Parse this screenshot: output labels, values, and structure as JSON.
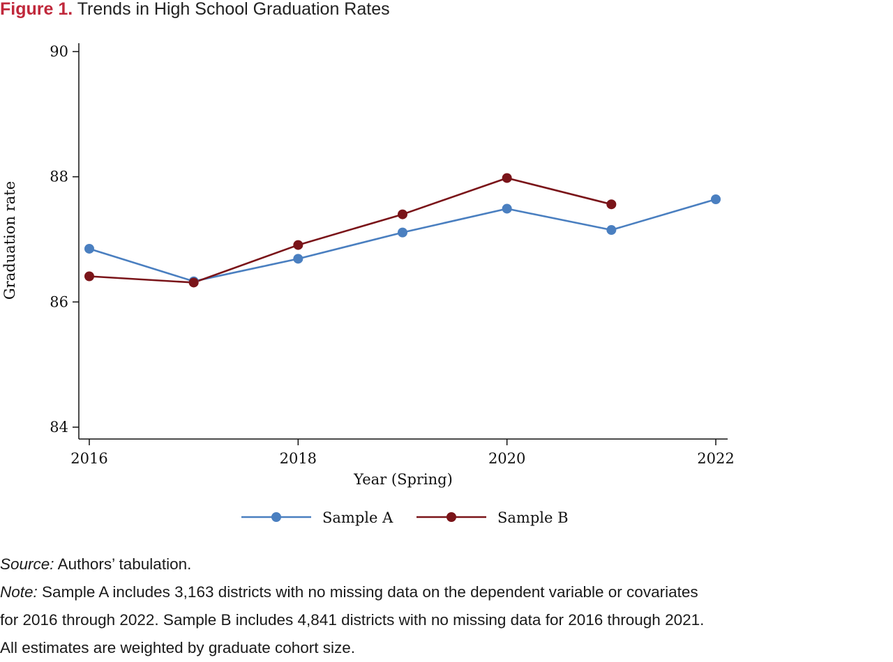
{
  "figure": {
    "label": "Figure 1.",
    "title": "Trends in High School Graduation Rates"
  },
  "chart_data": {
    "type": "line",
    "title": "Trends in High School Graduation Rates",
    "xlabel": "Year (Spring)",
    "ylabel": "Graduation rate",
    "xlim": [
      2016,
      2022
    ],
    "ylim": [
      84,
      90
    ],
    "x_ticks": [
      2016,
      2018,
      2020,
      2022
    ],
    "y_ticks": [
      84,
      86,
      88,
      90
    ],
    "grid": false,
    "legend_position": "bottom",
    "series": [
      {
        "name": "Sample A",
        "color": "#4a7fc0",
        "x": [
          2016,
          2017,
          2018,
          2019,
          2020,
          2021,
          2022
        ],
        "values": [
          86.85,
          86.33,
          86.69,
          87.11,
          87.49,
          87.15,
          87.64
        ]
      },
      {
        "name": "Sample B",
        "color": "#7a1419",
        "x": [
          2016,
          2017,
          2018,
          2019,
          2020,
          2021
        ],
        "values": [
          86.41,
          86.31,
          86.91,
          87.4,
          87.98,
          87.56
        ]
      }
    ]
  },
  "notes": {
    "source_label": "Source:",
    "source_text": "Authors’ tabulation.",
    "note_label": "Note:",
    "note_line1": "Sample A includes 3,163 districts with no missing data on the dependent variable or covariates",
    "note_line2": "for 2016 through 2022. Sample B includes 4,841 districts with no missing data for 2016 through 2021.",
    "note_line3": "All estimates are weighted by graduate cohort size."
  }
}
